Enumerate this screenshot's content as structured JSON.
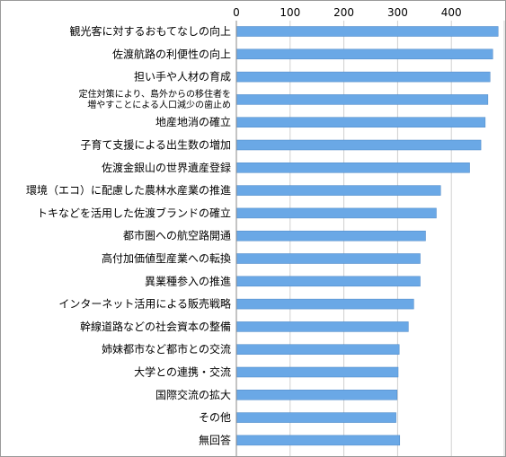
{
  "chart_data": {
    "type": "bar",
    "orientation": "horizontal",
    "categories": [
      "観光客に対するおもてなしの向上",
      "佐渡航路の利便性の向上",
      "担い手や人材の育成",
      "定住対策により、島外からの移住者を\n増やすことによる人口減少の歯止め",
      "地産地消の確立",
      "子育て支援による出生数の増加",
      "佐渡金銀山の世界遺産登録",
      "環境（エコ）に配慮した農林水産業の推進",
      "トキなどを活用した佐渡ブランドの確立",
      "都市圏への航空路開通",
      "高付加価値型産業への転換",
      "異業種参入の推進",
      "インターネット活用による販売戦略",
      "幹線道路などの社会資本の整備",
      "姉妹都市など都市との交流",
      "大学との連携・交流",
      "国際交流の拡大",
      "その他",
      "無回答"
    ],
    "values": [
      487,
      477,
      472,
      468,
      463,
      455,
      434,
      380,
      372,
      352,
      342,
      342,
      330,
      320,
      303,
      301,
      299,
      297,
      304
    ],
    "xlim": [
      0,
      500
    ],
    "xticks": [
      "0",
      "100",
      "200",
      "300",
      "400"
    ],
    "xtick_values": [
      0,
      100,
      200,
      300,
      400
    ],
    "grid": true,
    "bar_color": "#6aa8e6",
    "bar_edge_color": "#4a86c5"
  }
}
